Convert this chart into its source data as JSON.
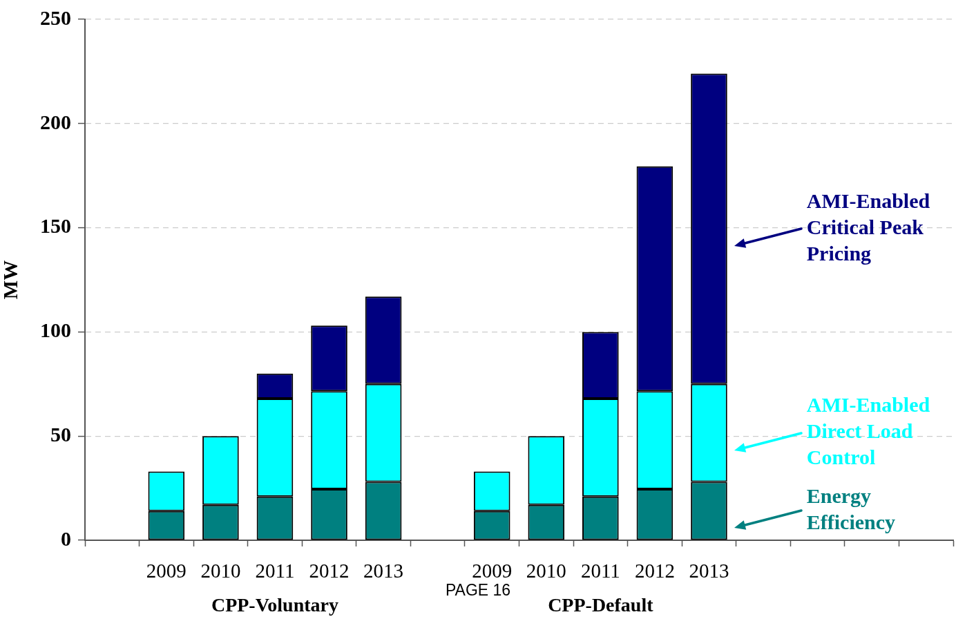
{
  "chart_data": {
    "type": "bar",
    "stacked": true,
    "categories": [
      null,
      "2009",
      "2010",
      "2011",
      "2012",
      "2013",
      null,
      "2009",
      "2010",
      "2011",
      "2012",
      "2013",
      null,
      null,
      null,
      null
    ],
    "series": [
      {
        "name": "Energy Efficiency",
        "color": "#008080",
        "values": [
          null,
          14,
          17,
          21,
          24.5,
          28,
          null,
          14,
          17,
          21,
          24.5,
          28,
          null,
          null,
          null,
          null
        ]
      },
      {
        "name": "AMI-Enabled Direct Load Control",
        "color": "#00ffff",
        "values": [
          null,
          19,
          33,
          47,
          47,
          47,
          null,
          19,
          33,
          47,
          47,
          47,
          null,
          null,
          null,
          null
        ]
      },
      {
        "name": "AMI-Enabled Critical Peak Pricing",
        "color": "#000080",
        "values": [
          null,
          null,
          null,
          12,
          31.5,
          42,
          null,
          null,
          null,
          32,
          108,
          149,
          null,
          null,
          null,
          null
        ]
      }
    ],
    "ylabel": "MW",
    "ylim": [
      0,
      250
    ],
    "yticks": [
      0,
      50,
      100,
      150,
      200,
      250
    ],
    "grid": "y",
    "legend": "right",
    "annotations": [
      "CPP-Voluntary",
      "CPP-Default",
      "PAGE 16"
    ]
  }
}
